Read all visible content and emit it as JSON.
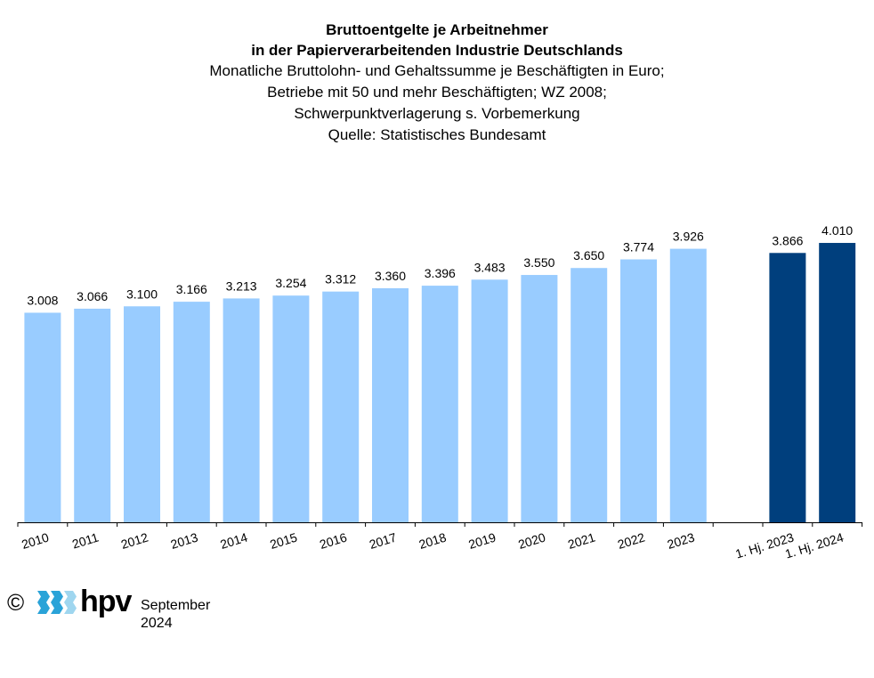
{
  "header": {
    "title_line1": "Bruttoentgelte je Arbeitnehmer",
    "title_line2": "in der Papierverarbeitenden Industrie Deutschlands",
    "subtitle_line1": "Monatliche Bruttolohn- und Gehaltssumme je Beschäftigten in Euro;",
    "subtitle_line2": "Betriebe mit 50 und mehr Beschäftigten; WZ 2008;",
    "subtitle_line3": "Schwerpunktverlagerung s. Vorbemerkung",
    "source": "Quelle: Statistisches Bundesamt"
  },
  "chart_data": {
    "type": "bar",
    "categories": [
      "2010",
      "2011",
      "2012",
      "2013",
      "2014",
      "2015",
      "2016",
      "2017",
      "2018",
      "2019",
      "2020",
      "2021",
      "2022",
      "2023",
      "1. Hj. 2023",
      "1. Hj. 2024"
    ],
    "values": [
      3008,
      3066,
      3100,
      3166,
      3213,
      3254,
      3312,
      3360,
      3396,
      3483,
      3550,
      3650,
      3774,
      3926,
      3866,
      4010
    ],
    "value_labels": [
      "3.008",
      "3.066",
      "3.100",
      "3.166",
      "3.213",
      "3.254",
      "3.312",
      "3.360",
      "3.396",
      "3.483",
      "3.550",
      "3.650",
      "3.774",
      "3.926",
      "3.866",
      "4.010"
    ],
    "bar_colors": [
      "#99ccff",
      "#99ccff",
      "#99ccff",
      "#99ccff",
      "#99ccff",
      "#99ccff",
      "#99ccff",
      "#99ccff",
      "#99ccff",
      "#99ccff",
      "#99ccff",
      "#99ccff",
      "#99ccff",
      "#99ccff",
      "#003f7d",
      "#003f7d"
    ],
    "ylim": [
      0,
      4500
    ],
    "grid": false,
    "y_axis_shown": false
  },
  "footer": {
    "copyright": "©",
    "logo_text": "hpv",
    "date": "September 2024"
  },
  "colors": {
    "light_bar": "#99ccff",
    "dark_bar": "#003f7d",
    "logo_blue": "#2aa3d8"
  }
}
